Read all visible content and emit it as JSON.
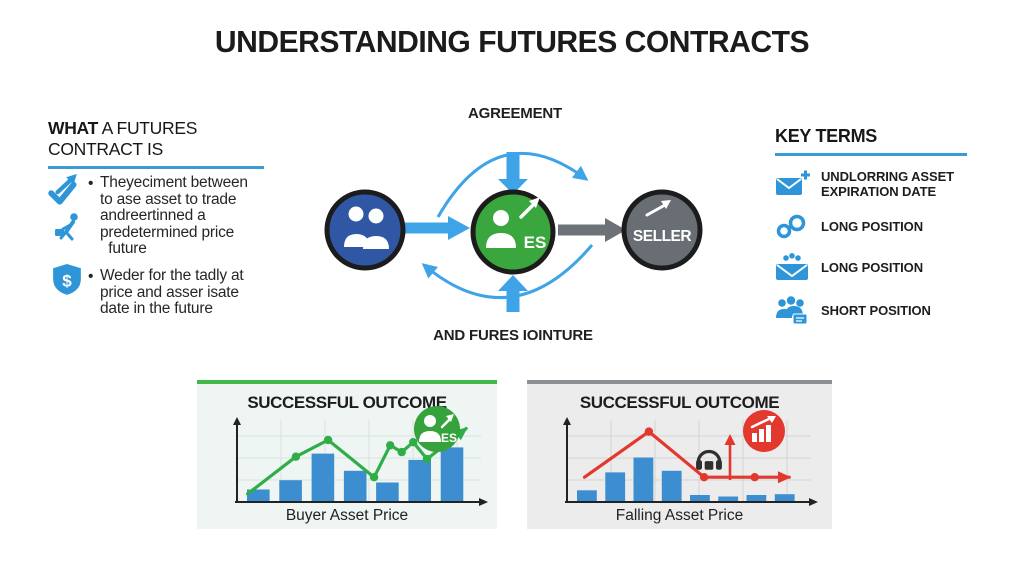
{
  "title": "UNDERSTANDING FUTURES CONTRACTS",
  "left_section": {
    "heading_bold": "WHAT",
    "heading_rest": " A FUTURES CONTRACT IS",
    "bullet_marker": "•",
    "bullet1": "Theyeciment between\nto ase asset to trade\nandreertinned a\npredetermined price\n  future",
    "bullet2": "Weder for the tadly at\nprice and asser isate\ndate in the future"
  },
  "diagram": {
    "top_label": "AGREEMENT",
    "bottom_label": "AND FURES IOINTURE",
    "buyer": {
      "color": "#2f57a4"
    },
    "contract": {
      "color": "#3aa63e",
      "label": "ES"
    },
    "seller": {
      "color": "#696e74",
      "label": "SELLER"
    },
    "arrow_blue": "#3fa3e8",
    "arrow_gray": "#6d7278"
  },
  "key_terms": {
    "heading": "KEY TERMS",
    "items": [
      {
        "icon": "envelope-plus-icon",
        "label": "UNDLORRING ASSET\nEXPIRATION DATE"
      },
      {
        "icon": "links-icon",
        "label": "LONG POSITION"
      },
      {
        "icon": "envelope-coins-icon",
        "label": "LONG POSITION"
      },
      {
        "icon": "people-group-icon",
        "label": "SHORT POSITION"
      }
    ],
    "icon_color": "#2e96d8"
  },
  "chart_data": [
    {
      "type": "bar",
      "title": "SUCCESSFUL OUTCOME",
      "xlabel": "Buyer Asset Price",
      "badge_label": "ES",
      "panel_accent": "#44b949",
      "bar_color": "#3d8ed0",
      "line_color": "#2fae47",
      "grid_color": "#d9e2e2",
      "grid": true,
      "ylim": [
        0,
        1
      ],
      "bars": [
        0.16,
        0.28,
        0.62,
        0.4,
        0.25,
        0.54,
        0.7
      ],
      "line": [
        [
          0.02,
          0.08
        ],
        [
          0.23,
          0.57
        ],
        [
          0.37,
          0.79
        ],
        [
          0.57,
          0.3
        ],
        [
          0.64,
          0.72
        ],
        [
          0.69,
          0.63
        ],
        [
          0.74,
          0.76
        ],
        [
          0.8,
          0.54
        ],
        [
          0.97,
          0.94
        ]
      ],
      "dot_indices": [
        1,
        2,
        3,
        4,
        5,
        6,
        7
      ]
    },
    {
      "type": "bar",
      "title": "SUCCESSFUL OUTCOME",
      "xlabel": "Falling Asset Price",
      "panel_accent": "#8d9093",
      "bar_color": "#3d8ed0",
      "line_color": "#e2382e",
      "grid_color": "#d4d4d4",
      "grid": true,
      "ylim": [
        0,
        1
      ],
      "bars": [
        0.15,
        0.38,
        0.57,
        0.4,
        0.09,
        0.07,
        0.09,
        0.1
      ],
      "line": [
        [
          0.05,
          0.3
        ],
        [
          0.33,
          0.9
        ],
        [
          0.57,
          0.3
        ],
        [
          0.79,
          0.3
        ],
        [
          0.94,
          0.3
        ]
      ],
      "dot_indices": [
        1,
        2,
        3
      ]
    }
  ]
}
